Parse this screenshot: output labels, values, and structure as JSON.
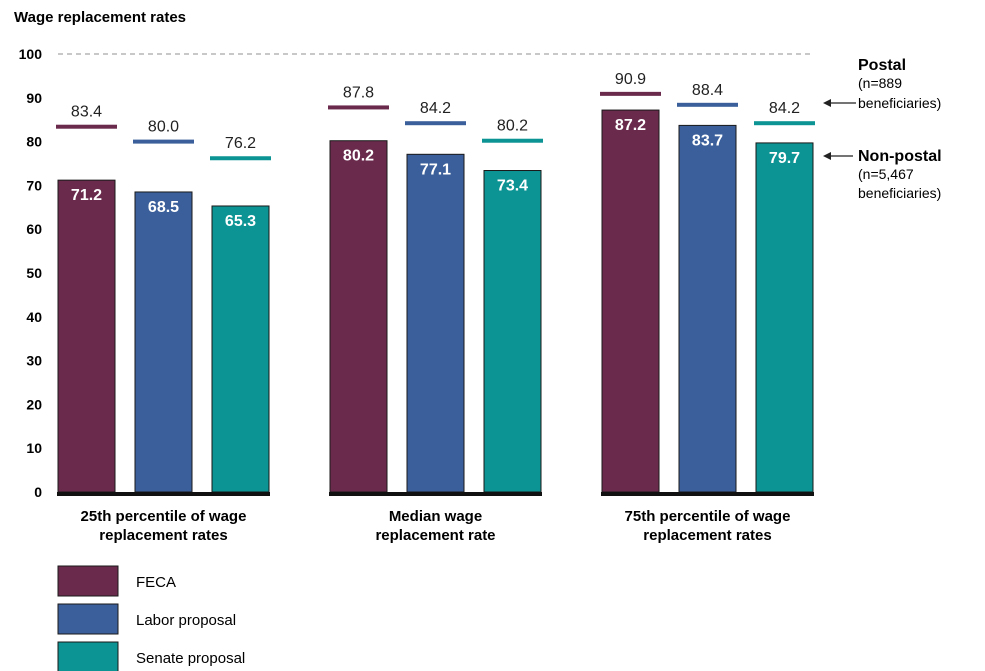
{
  "chart_data": {
    "type": "bar",
    "title": "Wage replacement rates",
    "ylim": [
      0,
      100
    ],
    "yticks": [
      0,
      10,
      20,
      30,
      40,
      50,
      60,
      70,
      80,
      90,
      100
    ],
    "categories": [
      [
        "25th percentile of wage",
        "replacement rates"
      ],
      [
        "Median wage",
        "replacement rate"
      ],
      [
        "75th percentile of wage",
        "replacement rates"
      ]
    ],
    "series": [
      {
        "name": "FECA",
        "color": "#6a2a4c",
        "nonpostal": [
          71.2,
          80.2,
          87.2
        ],
        "postal": [
          83.4,
          87.8,
          90.9
        ]
      },
      {
        "name": "Labor proposal",
        "color": "#3a5f9a",
        "nonpostal": [
          68.5,
          77.1,
          83.7
        ],
        "postal": [
          80.0,
          84.2,
          88.4
        ]
      },
      {
        "name": "Senate proposal",
        "color": "#0c9393",
        "nonpostal": [
          65.3,
          73.4,
          79.7
        ],
        "postal": [
          76.2,
          80.2,
          84.2
        ]
      }
    ],
    "annotations": {
      "postal": {
        "title": "Postal",
        "lines": [
          "(n=889",
          "beneficiaries)"
        ]
      },
      "nonpostal": {
        "title": "Non-postal",
        "lines": [
          "(n=5,467",
          "beneficiaries)"
        ]
      }
    },
    "reference_line": 100,
    "legend_position": "bottom-left"
  }
}
